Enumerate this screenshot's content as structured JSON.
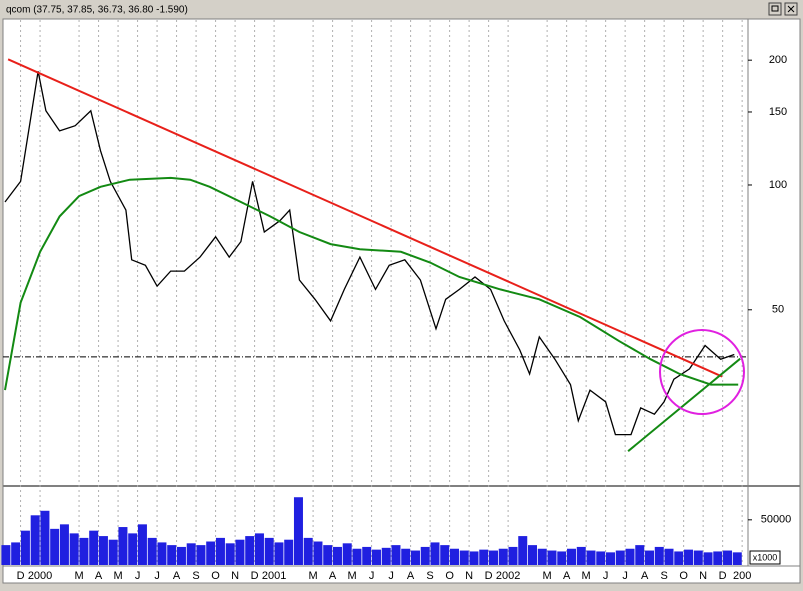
{
  "chart_data": {
    "type": "line",
    "title": "qcom (37.75, 37.85, 36.73, 36.80 -1.590)",
    "log_scale": true,
    "grid": true,
    "xlim": [
      -0.9,
      37.3
    ],
    "ylim": [
      19,
      250
    ],
    "yticks": [
      50,
      100,
      150,
      200
    ],
    "xticks": [
      {
        "value": 0,
        "label": "D"
      },
      {
        "value": 1,
        "label": "2000"
      },
      {
        "value": 3,
        "label": "M"
      },
      {
        "value": 4,
        "label": "A"
      },
      {
        "value": 5,
        "label": "M"
      },
      {
        "value": 6,
        "label": "J"
      },
      {
        "value": 7,
        "label": "J"
      },
      {
        "value": 8,
        "label": "A"
      },
      {
        "value": 9,
        "label": "S"
      },
      {
        "value": 10,
        "label": "O"
      },
      {
        "value": 11,
        "label": "N"
      },
      {
        "value": 12,
        "label": "D"
      },
      {
        "value": 13,
        "label": "2001"
      },
      {
        "value": 15,
        "label": "M"
      },
      {
        "value": 16,
        "label": "A"
      },
      {
        "value": 17,
        "label": "M"
      },
      {
        "value": 18,
        "label": "J"
      },
      {
        "value": 19,
        "label": "J"
      },
      {
        "value": 20,
        "label": "A"
      },
      {
        "value": 21,
        "label": "S"
      },
      {
        "value": 22,
        "label": "O"
      },
      {
        "value": 23,
        "label": "N"
      },
      {
        "value": 24,
        "label": "D"
      },
      {
        "value": 25,
        "label": "2002"
      },
      {
        "value": 27,
        "label": "M"
      },
      {
        "value": 28,
        "label": "A"
      },
      {
        "value": 29,
        "label": "M"
      },
      {
        "value": 30,
        "label": "J"
      },
      {
        "value": 31,
        "label": "J"
      },
      {
        "value": 32,
        "label": "A"
      },
      {
        "value": 33,
        "label": "S"
      },
      {
        "value": 34,
        "label": "O"
      },
      {
        "value": 35,
        "label": "N"
      },
      {
        "value": 36,
        "label": "D"
      },
      {
        "value": 37,
        "label": "200"
      }
    ],
    "series": [
      {
        "color": "#000000",
        "x": [
          -0.8,
          0.0,
          0.5,
          0.9,
          1.3,
          2.0,
          2.8,
          3.6,
          4.1,
          4.6,
          5.4,
          5.7,
          6.4,
          7.0,
          7.7,
          8.4,
          9.2,
          10.0,
          10.7,
          11.3,
          11.9,
          12.5,
          13.3,
          13.8,
          14.3,
          15.1,
          15.9,
          16.6,
          17.4,
          18.2,
          18.9,
          19.7,
          20.5,
          21.3,
          21.8,
          22.5,
          23.3,
          24.1,
          24.8,
          25.6,
          26.1,
          26.6,
          27.4,
          28.2,
          28.6,
          29.2,
          30.0,
          30.5,
          31.3,
          31.8,
          32.5,
          33.0,
          33.5,
          34.3,
          35.1,
          35.9,
          36.6
        ],
        "values": [
          91,
          102,
          143,
          188,
          151,
          135,
          139,
          151,
          121,
          102,
          87,
          66,
          64,
          57,
          62,
          62,
          67,
          75,
          67,
          73,
          102,
          77,
          82,
          87,
          59,
          53,
          47,
          56,
          67,
          56,
          64,
          66,
          59,
          45,
          53,
          56,
          60,
          56,
          47,
          40,
          35,
          43,
          38,
          33,
          27,
          32,
          30,
          25,
          25,
          29,
          28,
          30,
          34,
          36,
          41,
          38,
          39
        ]
      },
      {
        "color": "#138a13",
        "x": [
          -0.8,
          0.0,
          1.0,
          2.0,
          3.0,
          4.1,
          5.6,
          7.7,
          8.7,
          9.7,
          11.3,
          12.8,
          14.3,
          15.9,
          17.4,
          19.5,
          21.0,
          22.5,
          24.6,
          26.6,
          28.7,
          30.7,
          32.3,
          33.8,
          35.4,
          36.8
        ],
        "values": [
          32,
          52,
          69,
          84,
          94,
          99,
          103,
          104,
          103,
          99,
          91,
          84,
          77,
          72,
          70,
          69,
          65,
          60,
          56,
          53,
          48,
          42,
          38,
          35,
          33,
          33
        ]
      }
    ],
    "trendlines": [
      {
        "color": "#e8201a",
        "x": [
          -0.64,
          35.97
        ],
        "values": [
          201,
          34.5
        ]
      },
      {
        "color": "#138a13",
        "x": [
          31.15,
          36.9
        ],
        "values": [
          22.8,
          38.1
        ]
      }
    ],
    "reference_line": 38.5,
    "volume": {
      "color": "#2020e0",
      "label": "x1000",
      "ylim": [
        0,
        83000
      ],
      "yticks": [
        50000
      ],
      "x": [
        -0.75,
        -0.25,
        0.25,
        0.75,
        1.25,
        1.75,
        2.25,
        2.75,
        3.25,
        3.75,
        4.25,
        4.75,
        5.25,
        5.75,
        6.25,
        6.75,
        7.25,
        7.75,
        8.25,
        8.75,
        9.25,
        9.75,
        10.25,
        10.75,
        11.25,
        11.75,
        12.25,
        12.75,
        13.25,
        13.75,
        14.25,
        14.75,
        15.25,
        15.75,
        16.25,
        16.75,
        17.25,
        17.75,
        18.25,
        18.75,
        19.25,
        19.75,
        20.25,
        20.75,
        21.25,
        21.75,
        22.25,
        22.75,
        23.25,
        23.75,
        24.25,
        24.75,
        25.25,
        25.75,
        26.25,
        26.75,
        27.25,
        27.75,
        28.25,
        28.75,
        29.25,
        29.75,
        30.25,
        30.75,
        31.25,
        31.75,
        32.25,
        32.75,
        33.25,
        33.75,
        34.25,
        34.75,
        35.25,
        35.75,
        36.25,
        36.75
      ],
      "values": [
        22000,
        25000,
        38000,
        55000,
        60000,
        40000,
        45000,
        35000,
        30000,
        38000,
        32000,
        28000,
        42000,
        35000,
        45000,
        30000,
        25000,
        22000,
        20000,
        24000,
        22000,
        26000,
        30000,
        24000,
        28000,
        32000,
        35000,
        30000,
        25000,
        28000,
        75000,
        30000,
        26000,
        22000,
        20000,
        24000,
        18000,
        20000,
        17000,
        19000,
        22000,
        18000,
        16000,
        20000,
        25000,
        22000,
        18000,
        16000,
        15000,
        17000,
        16000,
        18000,
        20000,
        32000,
        22000,
        18000,
        16000,
        15000,
        18000,
        20000,
        16000,
        15000,
        14000,
        16000,
        18000,
        22000,
        16000,
        20000,
        18000,
        15000,
        17000,
        16000,
        14000,
        15000,
        16000,
        14000
      ]
    }
  }
}
